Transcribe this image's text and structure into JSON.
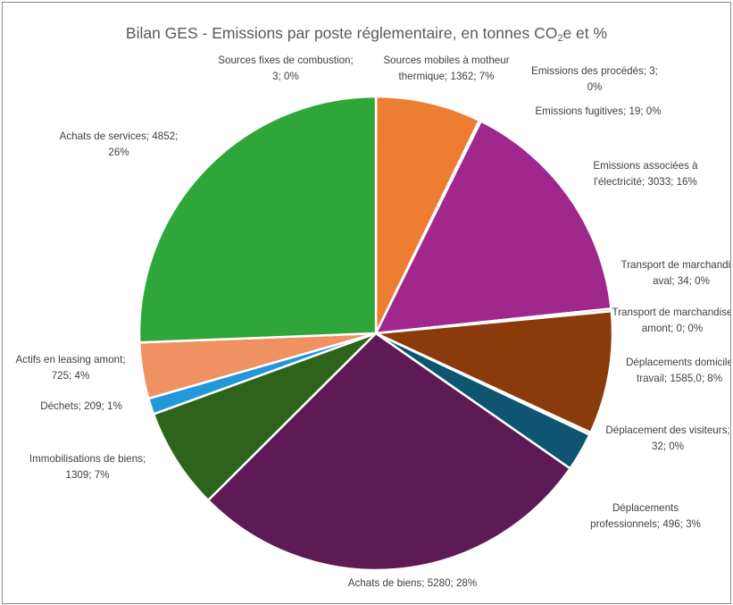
{
  "chart_data": {
    "type": "pie",
    "title_main": "Bilan GES - Emissions par poste réglementaire, en tonnes CO",
    "title_sub": "2",
    "title_end": "e et %",
    "slices": [
      {
        "name": "Sources fixes de combustion",
        "value": 3,
        "pct": "0%",
        "color": "#4472c4",
        "label_lines": [
          "Sources fixes de combustion;",
          "3; 0%"
        ]
      },
      {
        "name": "Sources mobiles à motheur thermique",
        "value": 1362,
        "pct": "7%",
        "color": "#ed7d31",
        "label_lines": [
          "Sources mobiles à motheur",
          "thermique; 1362; 7%"
        ]
      },
      {
        "name": "Emissions des procédés",
        "value": 3,
        "pct": "0%",
        "color": "#a5a5a5",
        "label_lines": [
          "Emissions des procédés; 3;",
          "0%"
        ]
      },
      {
        "name": "Emissions fugitives",
        "value": 19,
        "pct": "0%",
        "color": "#ffc000",
        "label_lines": [
          "Emissions fugitives; 19; 0%"
        ]
      },
      {
        "name": "Emissions associées à l'électricité",
        "value": 3033,
        "pct": "16%",
        "color": "#a0288c",
        "label_lines": [
          "Emissions associées à",
          "l'électricité; 3033; 16%"
        ]
      },
      {
        "name": "Transport de marchandise aval",
        "value": 34,
        "pct": "0%",
        "color": "#9e480e",
        "label_lines": [
          "Transport de marchandise",
          "aval; 34; 0%"
        ]
      },
      {
        "name": "Transport de marchandise amont",
        "value": 0,
        "pct": "0%",
        "color": "#636363",
        "label_lines": [
          "Transport de marchandise",
          "amont; 0; 0%"
        ]
      },
      {
        "name": "Déplacements domicile travail",
        "value": 1585.0,
        "pct": "8%",
        "color": "#8b3a0c",
        "label_lines": [
          "Déplacements domicile",
          "travail; 1585,0; 8%"
        ]
      },
      {
        "name": "Déplacement des visiteurs",
        "value": 32,
        "pct": "0%",
        "color": "#997300",
        "label_lines": [
          "Déplacement des visiteurs;",
          "32; 0%"
        ]
      },
      {
        "name": "Déplacements professionnels",
        "value": 496,
        "pct": "3%",
        "color": "#0d5570",
        "label_lines": [
          "Déplacements",
          "professionnels; 496; 3%"
        ]
      },
      {
        "name": "Achats de biens",
        "value": 5280,
        "pct": "28%",
        "color": "#5e1a55",
        "label_lines": [
          "Achats de biens; 5280; 28%"
        ]
      },
      {
        "name": "Immobilisations de biens",
        "value": 1309,
        "pct": "7%",
        "color": "#2e6419",
        "label_lines": [
          "Immobilisations de biens;",
          "1309; 7%"
        ]
      },
      {
        "name": "Déchets",
        "value": 209,
        "pct": "1%",
        "color": "#2298d8",
        "label_lines": [
          "Déchets; 209; 1%"
        ]
      },
      {
        "name": "Actifs en leasing amont",
        "value": 725,
        "pct": "4%",
        "color": "#ef9160",
        "label_lines": [
          "Actifs en leasing amont;",
          "725; 4%"
        ]
      },
      {
        "name": "Achats de services",
        "value": 4852,
        "pct": "26%",
        "color": "#2ea63a",
        "label_lines": [
          "Achats de services; 4852;",
          "26%"
        ]
      }
    ]
  }
}
